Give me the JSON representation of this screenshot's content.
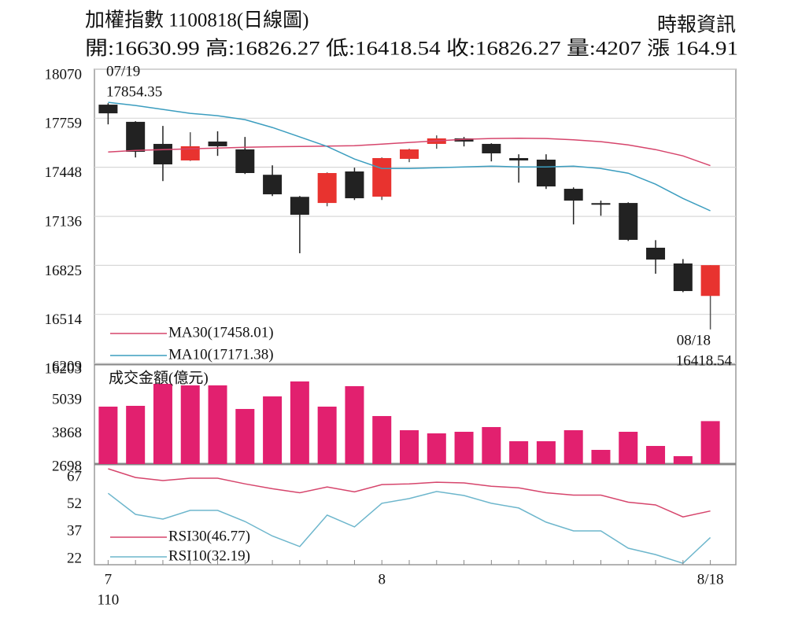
{
  "header": {
    "title": "加權指數 1100818(日線圖)",
    "source": "時報資訊",
    "summary": "開:16630.99 高:16826.27 低:16418.54 收:16826.27 量:4207 漲 164.91"
  },
  "chart_data": [
    {
      "type": "candlestick",
      "open": [
        17845,
        17736,
        17596,
        17491,
        17611,
        17561,
        17400,
        17260,
        17221,
        17421,
        17261,
        17501,
        17596,
        17631,
        17596,
        17506,
        17496,
        17311,
        17220,
        17221,
        16937,
        16837,
        16630.99
      ],
      "high": [
        17854.35,
        17740,
        17710,
        17670,
        17676,
        17640,
        17460,
        17265,
        17415,
        17445,
        17510,
        17565,
        17650,
        17640,
        17600,
        17530,
        17530,
        17320,
        17236,
        17225,
        16985,
        16865,
        16826.27
      ],
      "low": [
        17720,
        17510,
        17360,
        17488,
        17520,
        17405,
        17265,
        16902,
        17200,
        17240,
        17240,
        17480,
        17565,
        17580,
        17485,
        17350,
        17310,
        17085,
        17140,
        16980,
        16772,
        16655,
        16418.54
      ],
      "close": [
        17790,
        17546,
        17466,
        17581,
        17581,
        17411,
        17276,
        17146,
        17411,
        17251,
        17506,
        17561,
        17631,
        17611,
        17536,
        17491,
        17326,
        17236,
        17210,
        16987,
        16862,
        16662,
        16826.27
      ],
      "up_color": "#e8332f",
      "down_color": "#222222",
      "lines": [
        {
          "name": "MA30(17458.01)",
          "color": "#d6456c",
          "values": [
            17545,
            17555,
            17560,
            17565,
            17570,
            17575,
            17578,
            17580,
            17582,
            17585,
            17595,
            17605,
            17615,
            17625,
            17630,
            17632,
            17630,
            17622,
            17610,
            17590,
            17560,
            17520,
            17458.01
          ]
        },
        {
          "name": "MA10(17171.38)",
          "color": "#3b9dbf",
          "values": [
            17860,
            17840,
            17815,
            17790,
            17775,
            17750,
            17700,
            17640,
            17580,
            17500,
            17440,
            17440,
            17445,
            17450,
            17455,
            17450,
            17450,
            17455,
            17440,
            17410,
            17340,
            17250,
            17171.38
          ]
        }
      ],
      "annotations": [
        "07/19",
        "17854.35",
        "08/18",
        "16418.54"
      ],
      "ylim": [
        16203,
        18070
      ],
      "yticks": [
        18070,
        17759,
        17448,
        17136,
        16825,
        16514,
        16203
      ],
      "grid": true
    },
    {
      "type": "bar",
      "title": "成交金額(億元)",
      "color": "#e2206f",
      "values": [
        4716,
        4744,
        5518,
        5463,
        5463,
        4634,
        5076,
        5601,
        4716,
        5435,
        4385,
        3887,
        3776,
        3832,
        3998,
        3500,
        3500,
        3887,
        3196,
        3832,
        3334,
        2975,
        4207
      ],
      "ylim": [
        2698,
        6209
      ],
      "yticks": [
        6209,
        5039,
        3868,
        2698
      ]
    },
    {
      "type": "line",
      "categories": [
        "7",
        null,
        null,
        null,
        null,
        null,
        null,
        null,
        null,
        null,
        "8",
        null,
        null,
        null,
        null,
        null,
        null,
        null,
        null,
        null,
        null,
        null,
        "8/18"
      ],
      "x_sublabel": "110",
      "series": [
        {
          "name": "RSI30(46.77)",
          "color": "#d6456c",
          "values": [
            70,
            65.2,
            63.5,
            64.8,
            64.8,
            61.7,
            59.0,
            56.8,
            60.0,
            57.3,
            61.3,
            61.7,
            62.6,
            62.2,
            60.4,
            59.5,
            56.8,
            55.5,
            55.5,
            51.6,
            50.1,
            43.5,
            46.77
          ]
        },
        {
          "name": "RSI10(32.19)",
          "color": "#6db6cc",
          "values": [
            56.5,
            44.9,
            42.3,
            47.1,
            47.1,
            41.0,
            33,
            27.2,
            44.5,
            38.0,
            51,
            53.6,
            57.5,
            55.3,
            51,
            48.4,
            40.6,
            35.8,
            35.8,
            26.3,
            22.8,
            18,
            32.19
          ]
        }
      ],
      "ylim": [
        17.2,
        72.6
      ],
      "yticks": [
        67,
        52,
        37,
        22
      ]
    }
  ]
}
